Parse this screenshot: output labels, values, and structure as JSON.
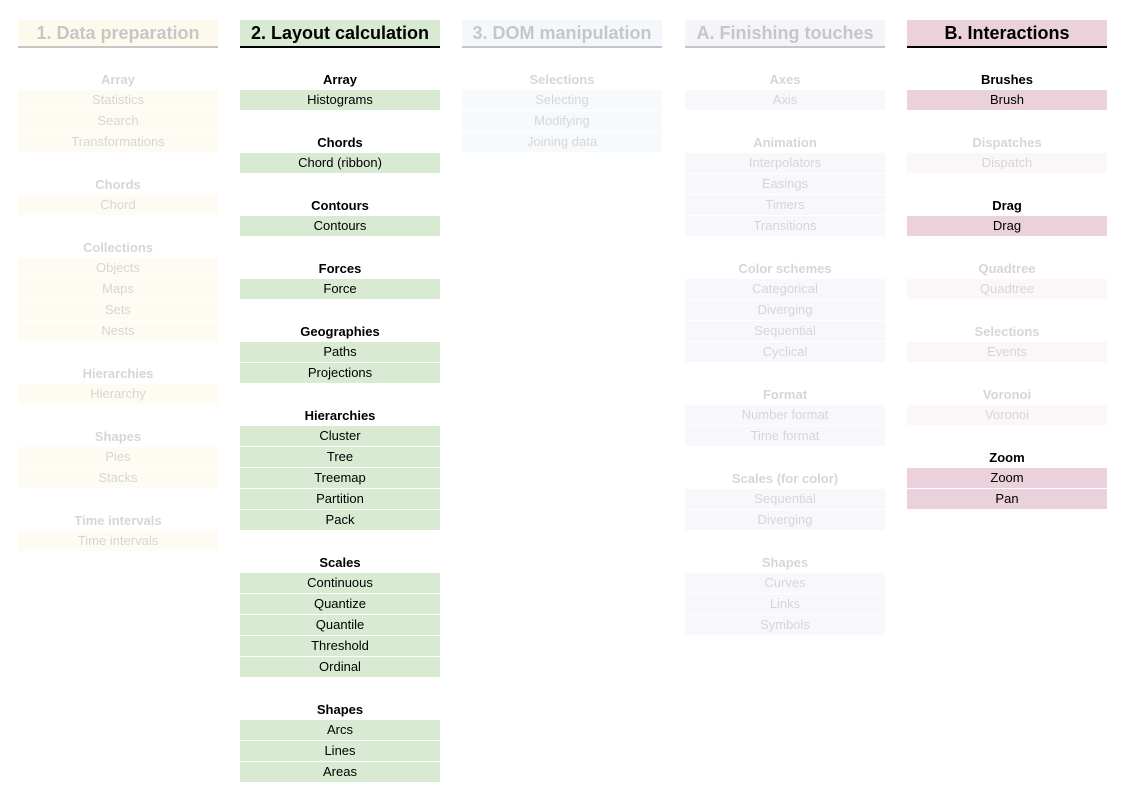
{
  "columns": [
    {
      "title": "1. Data preparation",
      "active": false,
      "color": "#fce8b2",
      "groups": [
        {
          "title": "Array",
          "items": [
            "Statistics",
            "Search",
            "Transformations"
          ]
        },
        {
          "title": "Chords",
          "items": [
            "Chord"
          ]
        },
        {
          "title": "Collections",
          "items": [
            "Objects",
            "Maps",
            "Sets",
            "Nests"
          ]
        },
        {
          "title": "Hierarchies",
          "items": [
            "Hierarchy"
          ]
        },
        {
          "title": "Shapes",
          "items": [
            "Pies",
            "Stacks"
          ]
        },
        {
          "title": "Time intervals",
          "items": [
            "Time intervals"
          ]
        }
      ]
    },
    {
      "title": "2. Layout calculation",
      "active": true,
      "color": "#d9ead3",
      "groups": [
        {
          "title": "Array",
          "items": [
            "Histograms"
          ]
        },
        {
          "title": "Chords",
          "items": [
            "Chord (ribbon)"
          ]
        },
        {
          "title": "Contours",
          "items": [
            "Contours"
          ]
        },
        {
          "title": "Forces",
          "items": [
            "Force"
          ]
        },
        {
          "title": "Geographies",
          "items": [
            "Paths",
            "Projections"
          ]
        },
        {
          "title": "Hierarchies",
          "items": [
            "Cluster",
            "Tree",
            "Treemap",
            "Partition",
            "Pack"
          ]
        },
        {
          "title": "Scales",
          "items": [
            "Continuous",
            "Quantize",
            "Quantile",
            "Threshold",
            "Ordinal"
          ]
        },
        {
          "title": "Shapes",
          "items": [
            "Arcs",
            "Lines",
            "Areas"
          ]
        }
      ]
    },
    {
      "title": "3. DOM manipulation",
      "active": false,
      "color": "#cfe2f3",
      "groups": [
        {
          "title": "Selections",
          "items": [
            "Selecting",
            "Modifying",
            "Joining data"
          ]
        }
      ]
    },
    {
      "title": "A. Finishing touches",
      "active": false,
      "color": "#d9d2e9",
      "groups": [
        {
          "title": "Axes",
          "items": [
            "Axis"
          ]
        },
        {
          "title": "Animation",
          "items": [
            "Interpolators",
            "Easings",
            "Timers",
            "Transitions"
          ]
        },
        {
          "title": "Color schemes",
          "items": [
            "Categorical",
            "Diverging",
            "Sequential",
            "Cyclical"
          ]
        },
        {
          "title": "Format",
          "items": [
            "Number format",
            "Time format"
          ]
        },
        {
          "title": "Scales (for color)",
          "items": [
            "Sequential",
            "Diverging"
          ]
        },
        {
          "title": "Shapes",
          "items": [
            "Curves",
            "Links",
            "Symbols"
          ]
        }
      ]
    },
    {
      "title": "B. Interactions",
      "active": true,
      "color": "#ead1dc",
      "groups": [
        {
          "title": "Brushes",
          "items": [
            "Brush"
          ],
          "active": true
        },
        {
          "title": "Dispatches",
          "items": [
            "Dispatch"
          ],
          "active": false
        },
        {
          "title": "Drag",
          "items": [
            "Drag"
          ],
          "active": true
        },
        {
          "title": "Quadtree",
          "items": [
            "Quadtree"
          ],
          "active": false
        },
        {
          "title": "Selections",
          "items": [
            "Events"
          ],
          "active": false
        },
        {
          "title": "Voronoi",
          "items": [
            "Voronoi"
          ],
          "active": false
        },
        {
          "title": "Zoom",
          "items": [
            "Zoom",
            "Pan"
          ],
          "active": true
        }
      ]
    }
  ]
}
